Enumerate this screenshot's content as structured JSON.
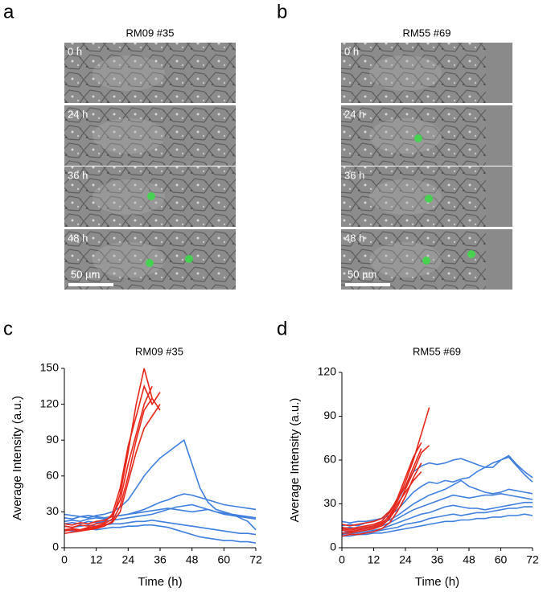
{
  "panels": [
    {
      "label": "a",
      "title": "RM09 #35",
      "frames": [
        "0 h",
        "24 h",
        "36 h",
        "48 h"
      ],
      "scale_bar": "50 µm"
    },
    {
      "label": "b",
      "title": "RM55 #69",
      "frames": [
        "0 h",
        "24 h",
        "36 h",
        "48 h"
      ],
      "scale_bar": "50 µm"
    }
  ],
  "chart_data": [
    {
      "type": "line",
      "label": "c",
      "title": "RM09 #35",
      "x_label": "Time (h)",
      "y_label": "Average Intensity (a.u.)",
      "xlim": [
        0,
        72
      ],
      "xticks": [
        0,
        12,
        24,
        36,
        48,
        60,
        72
      ],
      "ylim": [
        0,
        150
      ],
      "yticks": [
        0,
        30,
        60,
        90,
        120,
        150
      ],
      "x": [
        0,
        3,
        6,
        9,
        12,
        15,
        18,
        21,
        24,
        27,
        30,
        33,
        36,
        39,
        42,
        45,
        48,
        51,
        54,
        57,
        60,
        63,
        66,
        69,
        72
      ],
      "series": [
        {
          "color": "#3f7fe0",
          "values": [
            25,
            24,
            26,
            25,
            27,
            28,
            30,
            34,
            40,
            50,
            60,
            68,
            75,
            80,
            85,
            90,
            70,
            50,
            38,
            32,
            30,
            28,
            25,
            22,
            15
          ]
        },
        {
          "color": "#3f7fe0",
          "values": [
            22,
            23,
            22,
            24,
            25,
            24,
            26,
            27,
            28,
            30,
            32,
            35,
            38,
            40,
            43,
            45,
            44,
            42,
            40,
            38,
            36,
            35,
            34,
            33,
            32
          ]
        },
        {
          "color": "#3f7fe0",
          "values": [
            28,
            27,
            26,
            27,
            26,
            25,
            26,
            27,
            28,
            29,
            30,
            31,
            32,
            33,
            32,
            31,
            30,
            31,
            32,
            30,
            29,
            28,
            27,
            26,
            25
          ]
        },
        {
          "color": "#3f7fe0",
          "values": [
            20,
            21,
            20,
            22,
            21,
            22,
            23,
            24,
            25,
            26,
            27,
            28,
            30,
            32,
            34,
            35,
            36,
            34,
            32,
            30,
            28,
            27,
            26,
            25,
            24
          ]
        },
        {
          "color": "#3f7fe0",
          "values": [
            18,
            17,
            18,
            19,
            18,
            19,
            20,
            20,
            21,
            22,
            22,
            23,
            22,
            21,
            20,
            19,
            18,
            17,
            16,
            15,
            14,
            13,
            12,
            12,
            11
          ]
        },
        {
          "color": "#3f7fe0",
          "values": [
            15,
            14,
            15,
            16,
            15,
            16,
            17,
            17,
            18,
            18,
            19,
            19,
            18,
            17,
            15,
            13,
            11,
            9,
            8,
            7,
            6,
            6,
            5,
            5,
            4
          ]
        },
        {
          "color": "#e8261a",
          "values": [
            15,
            16,
            15,
            17,
            18,
            20,
            24,
            45,
            80,
            120,
            150,
            125,
            null,
            null,
            null,
            null,
            null,
            null,
            null,
            null,
            null,
            null,
            null,
            null,
            null
          ]
        },
        {
          "color": "#e8261a",
          "values": [
            18,
            17,
            19,
            18,
            20,
            21,
            28,
            50,
            85,
            110,
            135,
            120,
            130,
            null,
            null,
            null,
            null,
            null,
            null,
            null,
            null,
            null,
            null,
            null,
            null
          ]
        },
        {
          "color": "#e8261a",
          "values": [
            12,
            13,
            14,
            15,
            16,
            18,
            22,
            35,
            60,
            90,
            115,
            125,
            115,
            null,
            null,
            null,
            null,
            null,
            null,
            null,
            null,
            null,
            null,
            null,
            null
          ]
        },
        {
          "color": "#e8261a",
          "values": [
            20,
            19,
            21,
            20,
            22,
            23,
            26,
            40,
            70,
            95,
            120,
            135,
            null,
            null,
            null,
            null,
            null,
            null,
            null,
            null,
            null,
            null,
            null,
            null,
            null
          ]
        },
        {
          "color": "#e8261a",
          "values": [
            14,
            15,
            14,
            16,
            17,
            19,
            21,
            30,
            55,
            80,
            100,
            110,
            120,
            null,
            null,
            null,
            null,
            null,
            null,
            null,
            null,
            null,
            null,
            null,
            null
          ]
        }
      ]
    },
    {
      "type": "line",
      "label": "d",
      "title": "RM55 #69",
      "x_label": "Time (h)",
      "y_label": "Average Intensity (a.u.)",
      "xlim": [
        0,
        72
      ],
      "xticks": [
        0,
        12,
        24,
        36,
        48,
        60,
        72
      ],
      "ylim": [
        0,
        120
      ],
      "yticks": [
        0,
        30,
        60,
        90,
        120
      ],
      "x": [
        0,
        3,
        6,
        9,
        12,
        15,
        18,
        21,
        24,
        27,
        30,
        33,
        36,
        39,
        42,
        45,
        48,
        51,
        54,
        57,
        60,
        63,
        66,
        69,
        72
      ],
      "series": [
        {
          "color": "#3f7fe0",
          "values": [
            15,
            16,
            15,
            17,
            18,
            20,
            25,
            32,
            42,
            52,
            56,
            58,
            57,
            58,
            60,
            61,
            59,
            57,
            55,
            55,
            60,
            63,
            57,
            52,
            48
          ]
        },
        {
          "color": "#3f7fe0",
          "values": [
            18,
            17,
            18,
            18,
            19,
            20,
            22,
            26,
            32,
            38,
            42,
            45,
            44,
            46,
            45,
            47,
            48,
            52,
            55,
            58,
            60,
            62,
            56,
            50,
            45
          ]
        },
        {
          "color": "#3f7fe0",
          "values": [
            13,
            14,
            13,
            14,
            15,
            17,
            19,
            22,
            26,
            30,
            33,
            36,
            38,
            40,
            43,
            46,
            42,
            40,
            38,
            37,
            38,
            40,
            39,
            38,
            37
          ]
        },
        {
          "color": "#3f7fe0",
          "values": [
            12,
            11,
            12,
            13,
            14,
            15,
            17,
            20,
            23,
            26,
            28,
            30,
            32,
            34,
            36,
            35,
            34,
            35,
            36,
            36,
            37,
            36,
            35,
            34,
            33
          ]
        },
        {
          "color": "#3f7fe0",
          "values": [
            10,
            11,
            10,
            11,
            12,
            13,
            15,
            17,
            19,
            21,
            23,
            24,
            26,
            28,
            29,
            28,
            27,
            27,
            26,
            27,
            28,
            29,
            30,
            31,
            31
          ]
        },
        {
          "color": "#3f7fe0",
          "values": [
            9,
            10,
            9,
            10,
            11,
            12,
            13,
            14,
            16,
            17,
            18,
            20,
            21,
            22,
            23,
            22,
            23,
            24,
            24,
            25,
            26,
            27,
            27,
            28,
            28
          ]
        },
        {
          "color": "#3f7fe0",
          "values": [
            8,
            8,
            9,
            9,
            10,
            10,
            11,
            12,
            13,
            14,
            15,
            16,
            17,
            18,
            18,
            19,
            19,
            20,
            20,
            21,
            21,
            22,
            22,
            23,
            22
          ]
        },
        {
          "color": "#e8261a",
          "values": [
            12,
            11,
            12,
            13,
            14,
            16,
            22,
            32,
            45,
            60,
            78,
            96,
            null,
            null,
            null,
            null,
            null,
            null,
            null,
            null,
            null,
            null,
            null,
            null,
            null
          ]
        },
        {
          "color": "#e8261a",
          "values": [
            14,
            13,
            14,
            15,
            16,
            18,
            24,
            34,
            48,
            62,
            72,
            null,
            null,
            null,
            null,
            null,
            null,
            null,
            null,
            null,
            null,
            null,
            null,
            null,
            null
          ]
        },
        {
          "color": "#e8261a",
          "values": [
            10,
            10,
            11,
            12,
            13,
            15,
            20,
            28,
            40,
            52,
            65,
            70,
            null,
            null,
            null,
            null,
            null,
            null,
            null,
            null,
            null,
            null,
            null,
            null,
            null
          ]
        },
        {
          "color": "#e8261a",
          "values": [
            16,
            15,
            16,
            17,
            18,
            20,
            25,
            33,
            42,
            55,
            68,
            null,
            null,
            null,
            null,
            null,
            null,
            null,
            null,
            null,
            null,
            null,
            null,
            null,
            null
          ]
        },
        {
          "color": "#e8261a",
          "values": [
            8,
            9,
            9,
            10,
            11,
            13,
            17,
            25,
            35,
            48,
            58,
            null,
            null,
            null,
            null,
            null,
            null,
            null,
            null,
            null,
            null,
            null,
            null,
            null,
            null
          ]
        },
        {
          "color": "#e8261a",
          "values": [
            13,
            12,
            13,
            14,
            15,
            17,
            21,
            30,
            38,
            46,
            52,
            null,
            null,
            null,
            null,
            null,
            null,
            null,
            null,
            null,
            null,
            null,
            null,
            null,
            null
          ]
        }
      ]
    }
  ]
}
